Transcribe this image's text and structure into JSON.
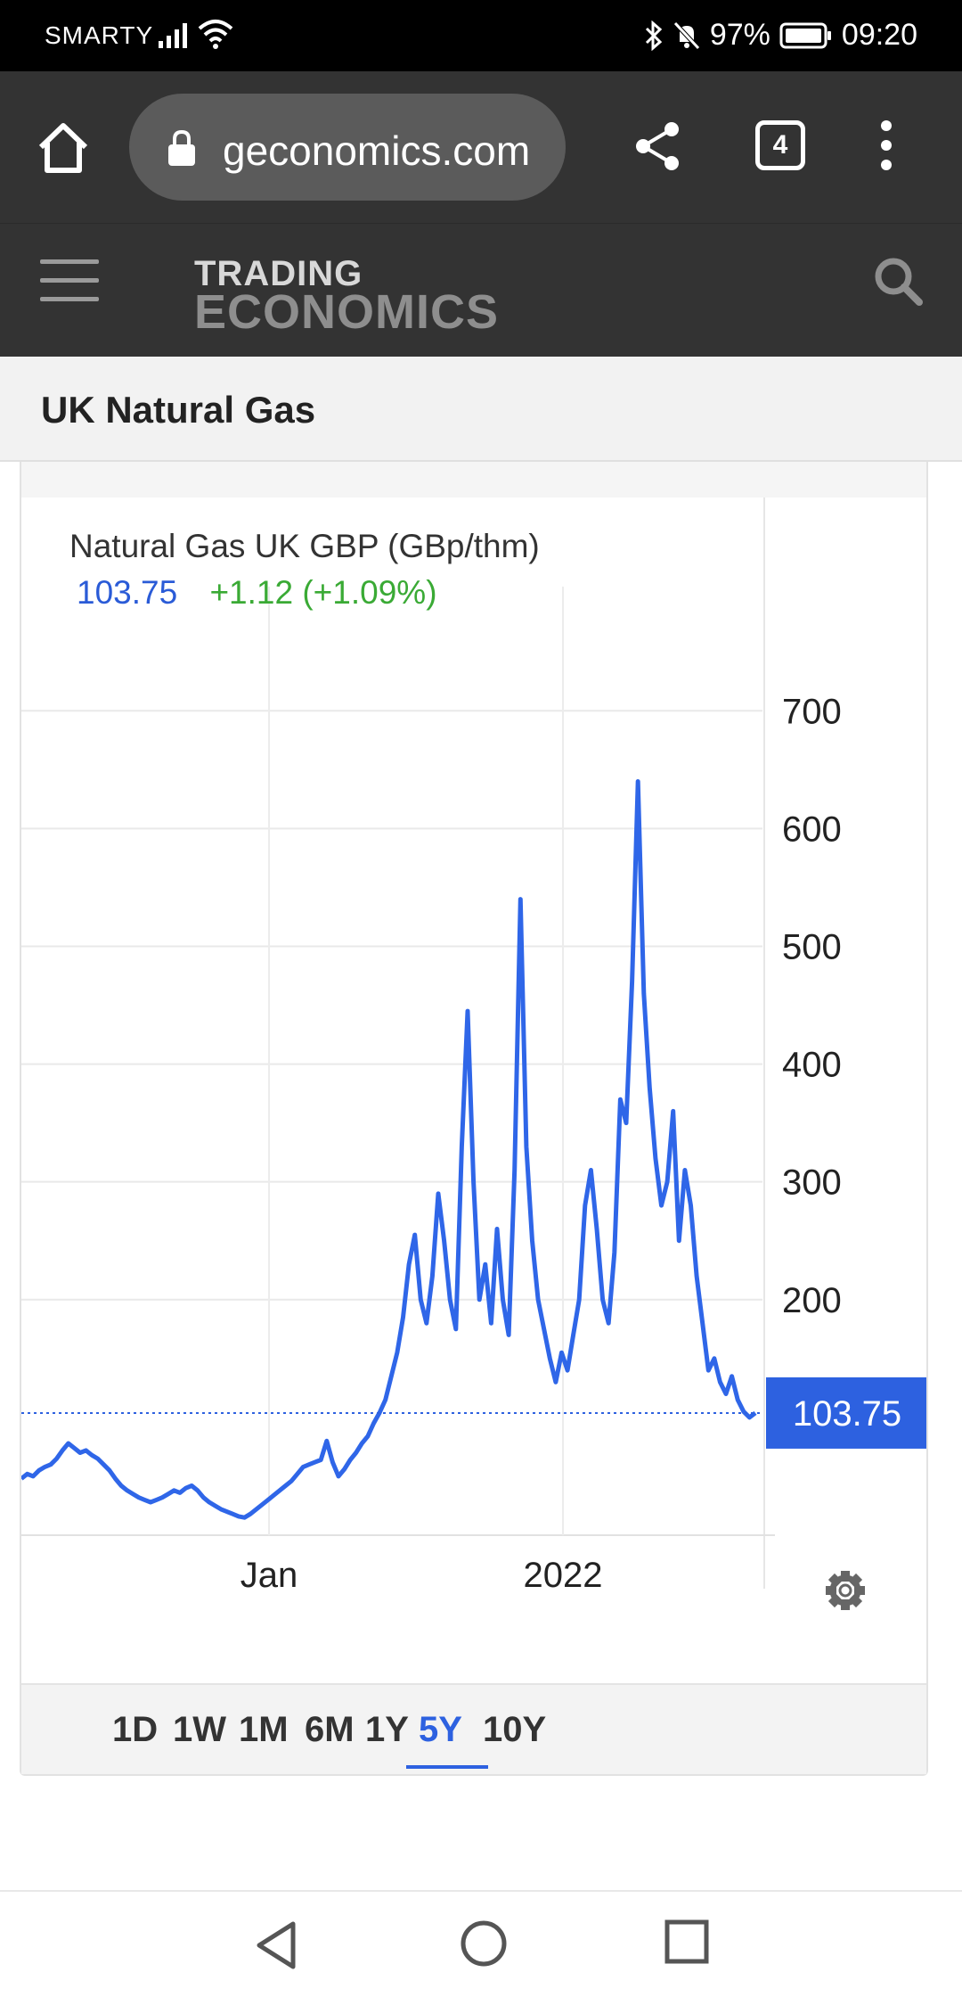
{
  "status_bar": {
    "carrier": "SMARTY",
    "battery": "97%",
    "time": "09:20"
  },
  "browser": {
    "url": "geconomics.com",
    "tab_count": "4"
  },
  "site": {
    "logo_line1": "TRADING",
    "logo_line2": "ECONOMICS"
  },
  "page": {
    "title": "UK Natural Gas"
  },
  "legend": {
    "title": "Natural Gas UK GBP (GBp/thm)",
    "value": "103.75",
    "change": "+1.12 (+1.09%)"
  },
  "colors": {
    "line": "#2f66e8",
    "accent": "#2d61e0",
    "positive": "#3aaa35"
  },
  "range_buttons": [
    "1D",
    "1W",
    "1M",
    "6M",
    "1Y",
    "5Y",
    "10Y"
  ],
  "range_active": "5Y",
  "chart_data": {
    "type": "line",
    "title": "Natural Gas UK GBP (GBp/thm)",
    "y_ticks": [
      700,
      600,
      500,
      400,
      300,
      200
    ],
    "y_tick_labels": [
      "700",
      "600",
      "500",
      "400",
      "300",
      "200"
    ],
    "x_tick_labels": [
      "Jan",
      "2022"
    ],
    "ylim": [
      0,
      760
    ],
    "last_value_label": "103.75",
    "last_value": 103.75,
    "grid": true,
    "series": [
      {
        "values": [
          48,
          52,
          50,
          55,
          58,
          60,
          65,
          72,
          78,
          74,
          70,
          72,
          68,
          65,
          60,
          55,
          48,
          42,
          38,
          35,
          32,
          30,
          28,
          30,
          32,
          35,
          38,
          36,
          40,
          42,
          38,
          32,
          28,
          25,
          22,
          20,
          18,
          16,
          15,
          18,
          22,
          26,
          30,
          34,
          38,
          42,
          46,
          52,
          58,
          60,
          62,
          64,
          80,
          62,
          50,
          56,
          64,
          70,
          78,
          84,
          95,
          104,
          115,
          135,
          155,
          185,
          230,
          255,
          200,
          180,
          220,
          290,
          250,
          200,
          175,
          330,
          445,
          300,
          200,
          230,
          180,
          260,
          200,
          170,
          310,
          540,
          330,
          250,
          200,
          175,
          150,
          130,
          155,
          140,
          170,
          200,
          280,
          310,
          260,
          200,
          180,
          240,
          370,
          350,
          470,
          640,
          460,
          380,
          320,
          280,
          300,
          360,
          250,
          310,
          280,
          220,
          180,
          140,
          150,
          130,
          120,
          135,
          115,
          105,
          100,
          103.75
        ]
      }
    ]
  }
}
